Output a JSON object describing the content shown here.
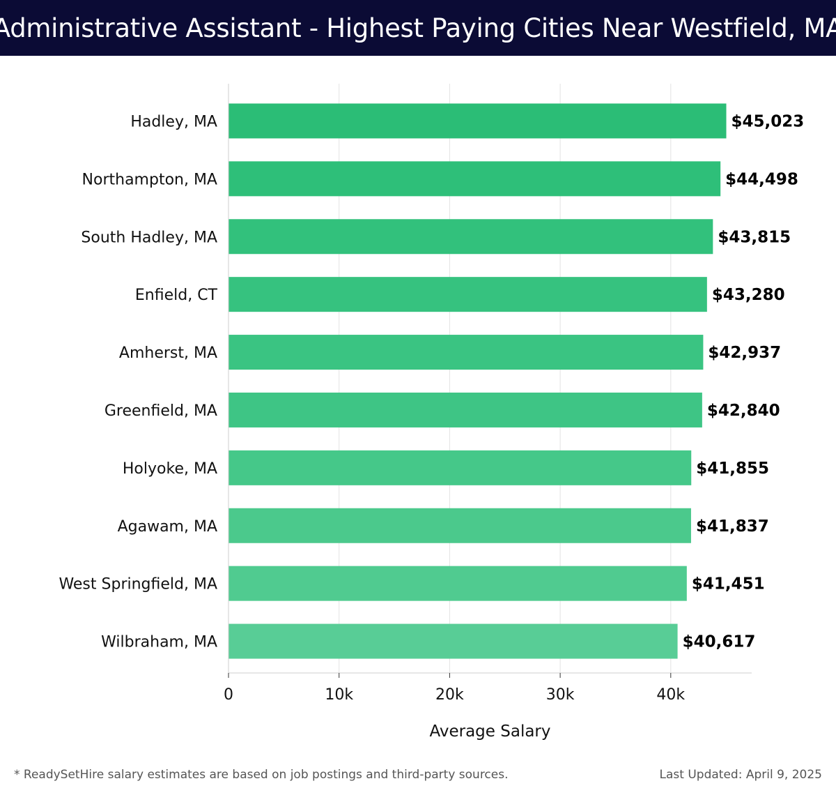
{
  "header": {
    "title": "Administrative Assistant - Highest Paying Cities Near Westfield, MA"
  },
  "chart_data": {
    "type": "bar",
    "orientation": "horizontal",
    "title": "Administrative Assistant - Highest Paying Cities Near Westfield, MA",
    "xlabel": "Average Salary",
    "ylabel": "",
    "xlim": [
      0,
      47500
    ],
    "x_ticks": [
      0,
      10000,
      20000,
      30000,
      40000
    ],
    "x_tick_labels": [
      "0",
      "10k",
      "20k",
      "30k",
      "40k"
    ],
    "grid": true,
    "categories": [
      "Hadley, MA",
      "Northampton, MA",
      "South Hadley, MA",
      "Enfield, CT",
      "Amherst, MA",
      "Greenfield, MA",
      "Holyoke, MA",
      "Agawam, MA",
      "West Springfield, MA",
      "Wilbraham, MA"
    ],
    "values": [
      45023,
      44498,
      43815,
      43280,
      42937,
      42840,
      41855,
      41837,
      41451,
      40617
    ],
    "value_labels": [
      "$45,023",
      "$44,498",
      "$43,815",
      "$43,280",
      "$42,937",
      "$42,840",
      "$41,855",
      "$41,837",
      "$41,451",
      "$40,617"
    ],
    "bar_colors": [
      "#2bbd76",
      "#2ebf79",
      "#32c17c",
      "#36c27f",
      "#3ac482",
      "#3ec585",
      "#45c889",
      "#4bc98c",
      "#50cb90",
      "#58cd96"
    ]
  },
  "footer": {
    "note": "* ReadySetHire salary estimates are based on job postings and third-party sources.",
    "updated": "Last Updated: April 9, 2025"
  }
}
